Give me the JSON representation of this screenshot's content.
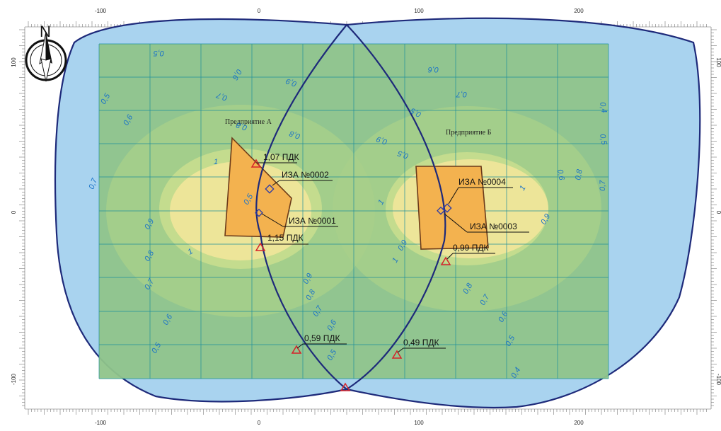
{
  "map": {
    "north_label": "N",
    "axis": {
      "x_ticks": [
        "-100",
        "0",
        "100",
        "200"
      ],
      "y_ticks": [
        "100",
        "0",
        "-100"
      ]
    },
    "enterprises": [
      {
        "id": "A",
        "label": "Предприятие А"
      },
      {
        "id": "B",
        "label": "Предприятие Б"
      }
    ],
    "sources": [
      {
        "id": "0001",
        "label": "ИЗА №0001"
      },
      {
        "id": "0002",
        "label": "ИЗА №0002"
      },
      {
        "id": "0003",
        "label": "ИЗА №0003"
      },
      {
        "id": "0004",
        "label": "ИЗА №0004"
      }
    ],
    "control_points": [
      {
        "label": "1,07 ПДК"
      },
      {
        "label": "1,15 ПДК"
      },
      {
        "label": "0,99 ПДК"
      },
      {
        "label": "0,59 ПДК"
      },
      {
        "label": "0,49 ПДК"
      }
    ],
    "isolines": [
      "0,5",
      "0,6",
      "0,6",
      "0,7",
      "0,8",
      "0,9",
      "0,8",
      "0,9",
      "0,5",
      "0,6",
      "0,7",
      "0,5",
      "0,4",
      "0,5",
      "0,6",
      "0,8",
      "0,7",
      "0,5",
      "1",
      "0,7",
      "0,9",
      "0,8",
      "0,7",
      "0,6",
      "0,5",
      "1",
      "0,9",
      "0,8",
      "0,7",
      "0,6",
      "0,5",
      "0,5",
      "1",
      "0,9",
      "1",
      "1",
      "0,9",
      "0,8",
      "0,7",
      "0,6",
      "0,5",
      "0,4"
    ],
    "colors": {
      "outer_zone": "#a9d3ef",
      "grid_zone": "#8fc48a",
      "mid_zone": "#c4dc8e",
      "high_zone": "#f2e59a",
      "enterprise_fill": "#f3b24f",
      "boundary": "#1e2a7a",
      "grid_line": "#1f8f9a",
      "isoline_text": "#1a73c8",
      "point_marker": "#d6232a"
    }
  }
}
